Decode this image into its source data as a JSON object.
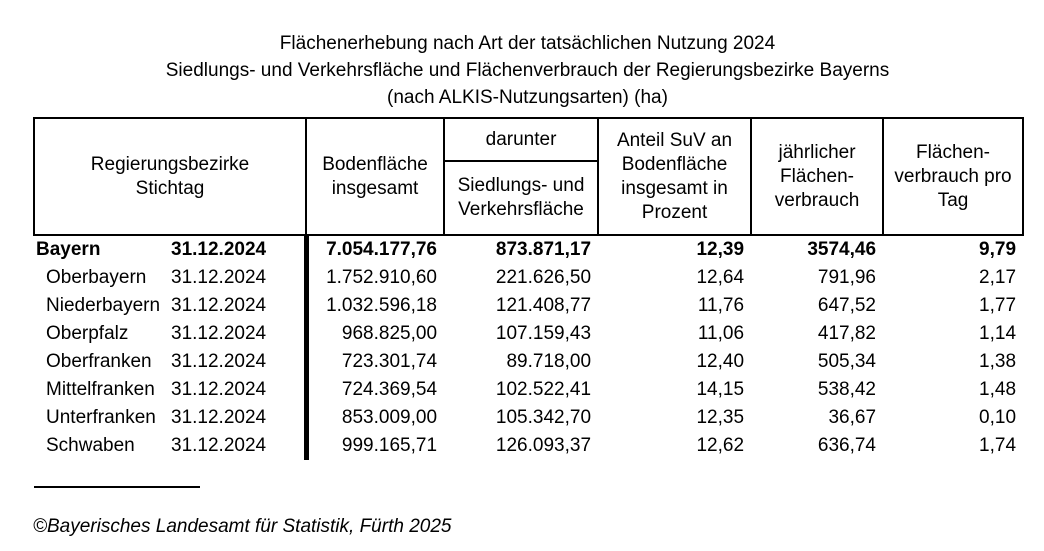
{
  "titles": {
    "line1": "Flächenerhebung nach Art der tatsächlichen Nutzung 2024",
    "line2": "Siedlungs- und Verkehrsfläche und Flächenverbrauch der Regierungsbezirke Bayerns",
    "line3": "(nach ALKIS-Nutzungsarten) (ha)"
  },
  "table": {
    "header": {
      "region_line1": "Regierungsbezirke",
      "region_line2": "Stichtag",
      "bodenflaeche": "Bodenfläche insgesamt",
      "darunter": "darunter",
      "suv": "Siedlungs- und Verkehrsfläche",
      "anteil": "Anteil SuV an Bodenfläche insgesamt in Prozent",
      "jaehrlich": "jährlicher Flächen-verbrauch",
      "pro_tag": "Flächen-verbrauch pro Tag"
    },
    "rows": [
      {
        "region": "Bayern",
        "stichtag": "31.12.2024",
        "bodenflaeche": "7.054.177,76",
        "suv": "873.871,17",
        "anteil": "12,39",
        "jaehrlich": "3574,46",
        "pro_tag": "9,79",
        "emphasis": true
      },
      {
        "region": "Oberbayern",
        "stichtag": "31.12.2024",
        "bodenflaeche": "1.752.910,60",
        "suv": "221.626,50",
        "anteil": "12,64",
        "jaehrlich": "791,96",
        "pro_tag": "2,17",
        "emphasis": false
      },
      {
        "region": "Niederbayern",
        "stichtag": "31.12.2024",
        "bodenflaeche": "1.032.596,18",
        "suv": "121.408,77",
        "anteil": "11,76",
        "jaehrlich": "647,52",
        "pro_tag": "1,77",
        "emphasis": false
      },
      {
        "region": "Oberpfalz",
        "stichtag": "31.12.2024",
        "bodenflaeche": "968.825,00",
        "suv": "107.159,43",
        "anteil": "11,06",
        "jaehrlich": "417,82",
        "pro_tag": "1,14",
        "emphasis": false
      },
      {
        "region": "Oberfranken",
        "stichtag": "31.12.2024",
        "bodenflaeche": "723.301,74",
        "suv": "89.718,00",
        "anteil": "12,40",
        "jaehrlich": "505,34",
        "pro_tag": "1,38",
        "emphasis": false
      },
      {
        "region": "Mittelfranken",
        "stichtag": "31.12.2024",
        "bodenflaeche": "724.369,54",
        "suv": "102.522,41",
        "anteil": "14,15",
        "jaehrlich": "538,42",
        "pro_tag": "1,48",
        "emphasis": false
      },
      {
        "region": "Unterfranken",
        "stichtag": "31.12.2024",
        "bodenflaeche": "853.009,00",
        "suv": "105.342,70",
        "anteil": "12,35",
        "jaehrlich": "36,67",
        "pro_tag": "0,10",
        "emphasis": false
      },
      {
        "region": "Schwaben",
        "stichtag": "31.12.2024",
        "bodenflaeche": "999.165,71",
        "suv": "126.093,37",
        "anteil": "12,62",
        "jaehrlich": "636,74",
        "pro_tag": "1,74",
        "emphasis": false
      }
    ]
  },
  "footer": {
    "copyright": "©Bayerisches Landesamt für Statistik, Fürth 2025"
  },
  "colors": {
    "text": "#000000",
    "background": "#ffffff",
    "border": "#000000"
  }
}
